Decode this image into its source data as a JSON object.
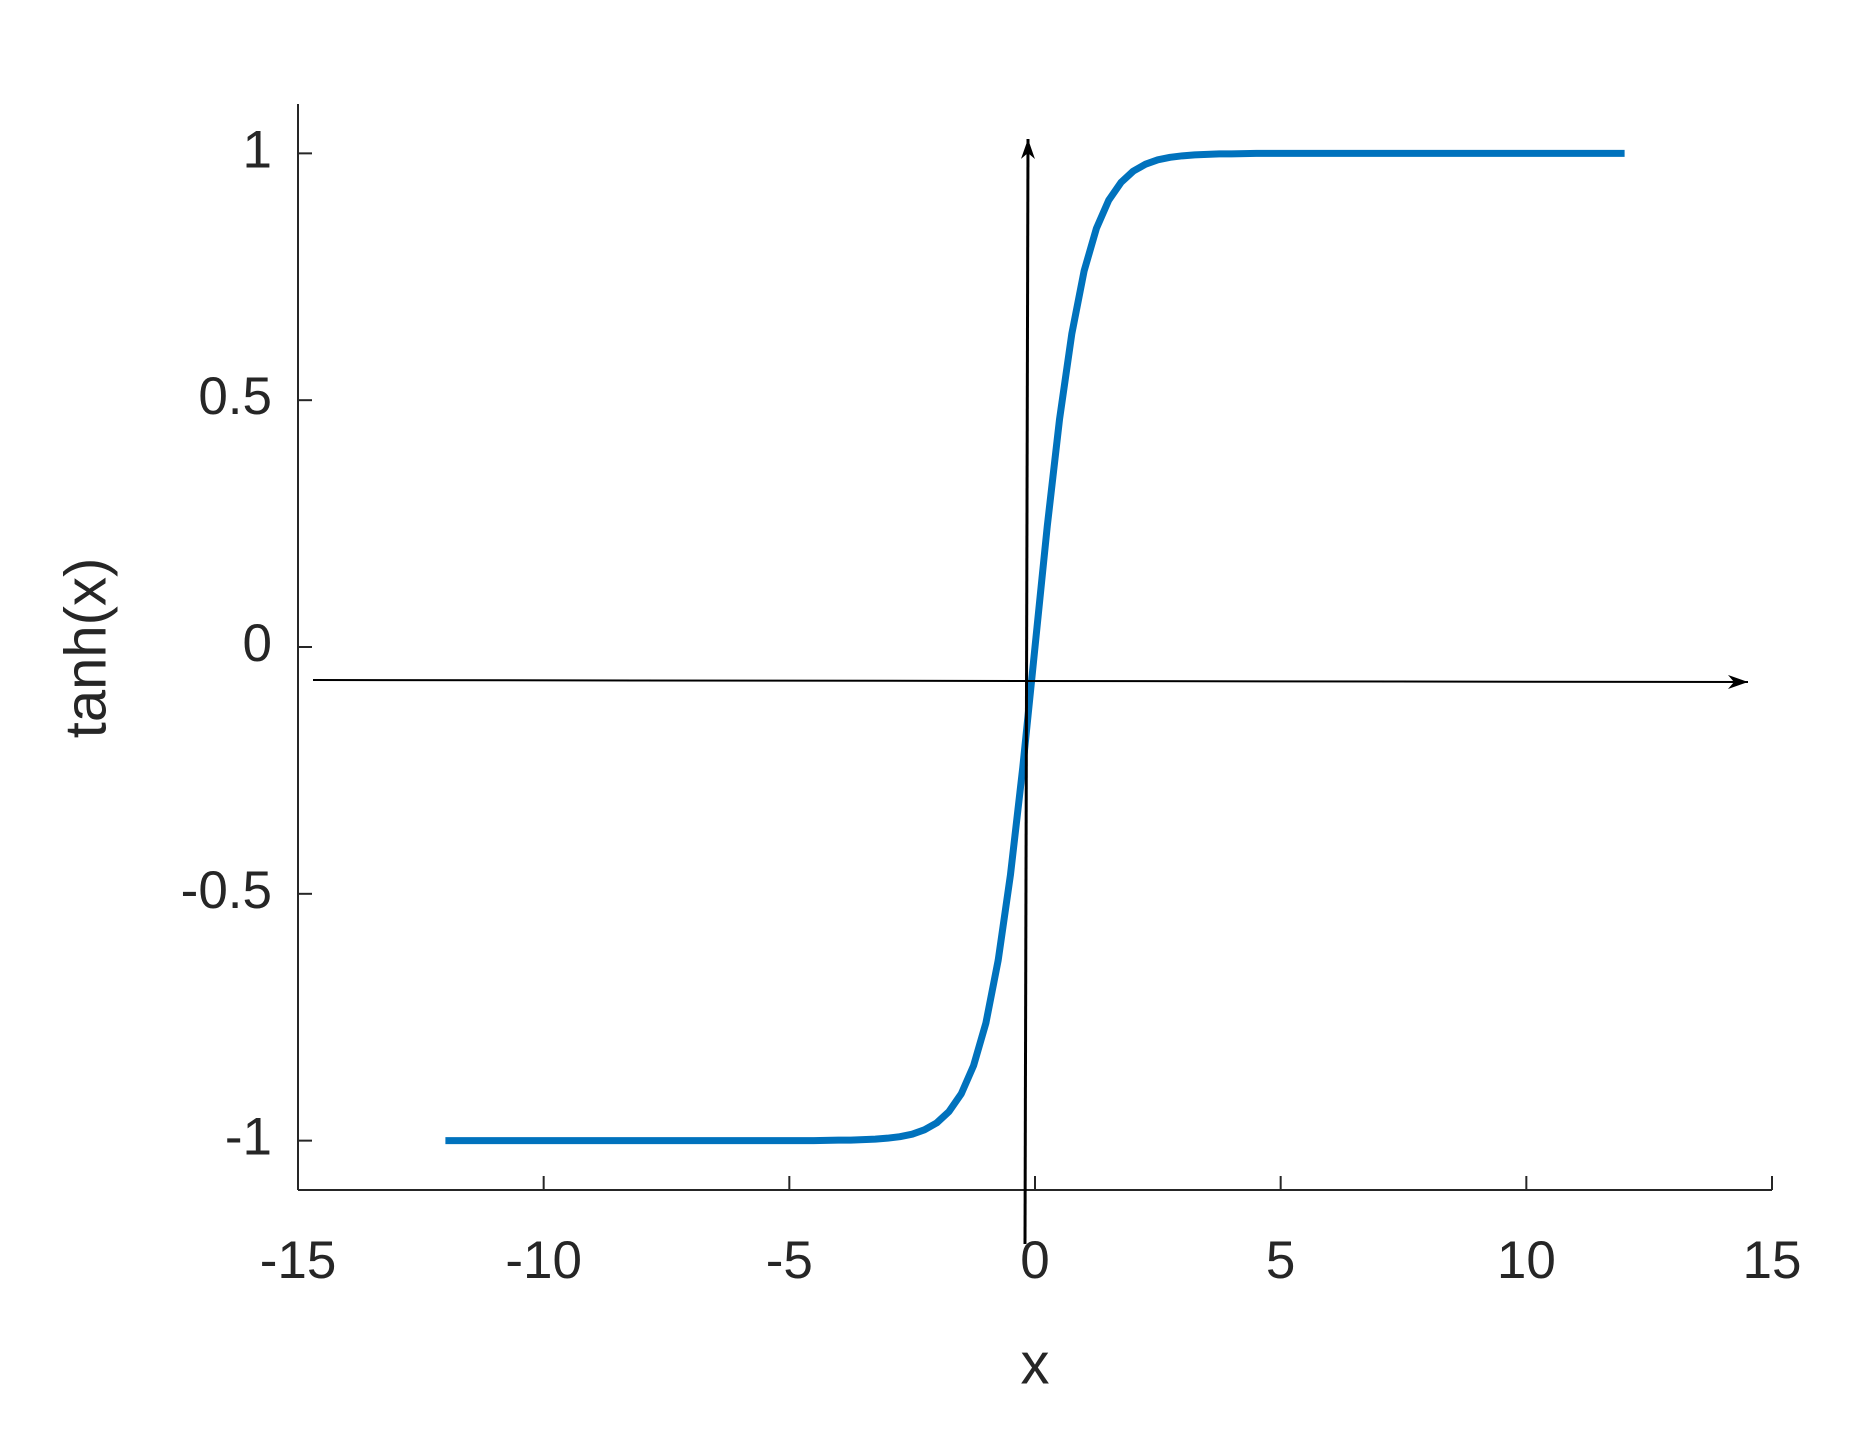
{
  "chart_data": {
    "type": "line",
    "xlabel": "x",
    "ylabel": "tanh(x)",
    "x": [
      -12,
      -11.5,
      -11,
      -10.5,
      -10,
      -9.5,
      -9,
      -8.5,
      -8,
      -7.5,
      -7,
      -6.5,
      -6,
      -5.5,
      -5,
      -4.5,
      -4,
      -3.75,
      -3.5,
      -3.25,
      -3,
      -2.75,
      -2.5,
      -2.25,
      -2,
      -1.75,
      -1.5,
      -1.25,
      -1,
      -0.75,
      -0.5,
      -0.25,
      0,
      0.25,
      0.5,
      0.75,
      1,
      1.25,
      1.5,
      1.75,
      2,
      2.25,
      2.5,
      2.75,
      3,
      3.25,
      3.5,
      3.75,
      4,
      4.5,
      5,
      5.5,
      6,
      6.5,
      7,
      7.5,
      8,
      8.5,
      9,
      9.5,
      10,
      10.5,
      11,
      11.5,
      12
    ],
    "series": [
      {
        "color": "#0072bd",
        "values": [
          -1,
          -1,
          -1,
          -1,
          -1,
          -1,
          -1,
          -1,
          -1,
          -1,
          -1,
          -1,
          -1,
          -1,
          -1,
          -1,
          -0.999,
          -0.999,
          -0.998,
          -0.997,
          -0.995,
          -0.992,
          -0.987,
          -0.978,
          -0.964,
          -0.941,
          -0.905,
          -0.848,
          -0.762,
          -0.635,
          -0.462,
          -0.245,
          0,
          0.245,
          0.462,
          0.635,
          0.762,
          0.848,
          0.905,
          0.941,
          0.964,
          0.978,
          0.987,
          0.992,
          0.995,
          0.997,
          0.998,
          0.999,
          0.999,
          1,
          1,
          1,
          1,
          1,
          1,
          1,
          1,
          1,
          1,
          1,
          1,
          1,
          1,
          1,
          1
        ]
      }
    ],
    "xlim": [
      -15,
      15
    ],
    "xticks": [
      -15,
      -10,
      -5,
      0,
      5,
      10,
      15
    ],
    "ylim": [
      -1.1,
      1.1
    ],
    "yticks": [
      -1,
      -0.5,
      0,
      0.5,
      1
    ],
    "grid": false
  }
}
